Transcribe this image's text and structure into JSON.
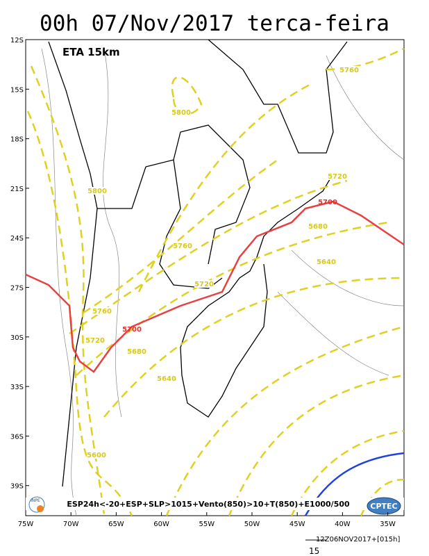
{
  "header": {
    "title": "00h 07/Nov/2017 terca-feira"
  },
  "map": {
    "model_label": "ETA 15km",
    "lat_labels": [
      "12S",
      "15S",
      "18S",
      "21S",
      "24S",
      "27S",
      "30S",
      "33S",
      "36S",
      "39S"
    ],
    "lon_labels": [
      "75W",
      "70W",
      "65W",
      "60W",
      "55W",
      "50W",
      "45W",
      "40W",
      "35W"
    ],
    "red_contour_labels": [
      "5700",
      "5700"
    ],
    "yellow_contour_labels": [
      "5760",
      "5800",
      "5800",
      "5720",
      "5680",
      "5760",
      "5640",
      "5720",
      "5760",
      "5720",
      "5680",
      "5640",
      "5600"
    ],
    "legend": "ESP24h<-20+ESP+SLP>1015+Vento(850)>10+T(850)+E1000/500",
    "logos": [
      "INPE",
      "CPTEC"
    ]
  },
  "footer": {
    "run": "12Z06NOV2017+[015h]",
    "vector_scale": "15"
  }
}
